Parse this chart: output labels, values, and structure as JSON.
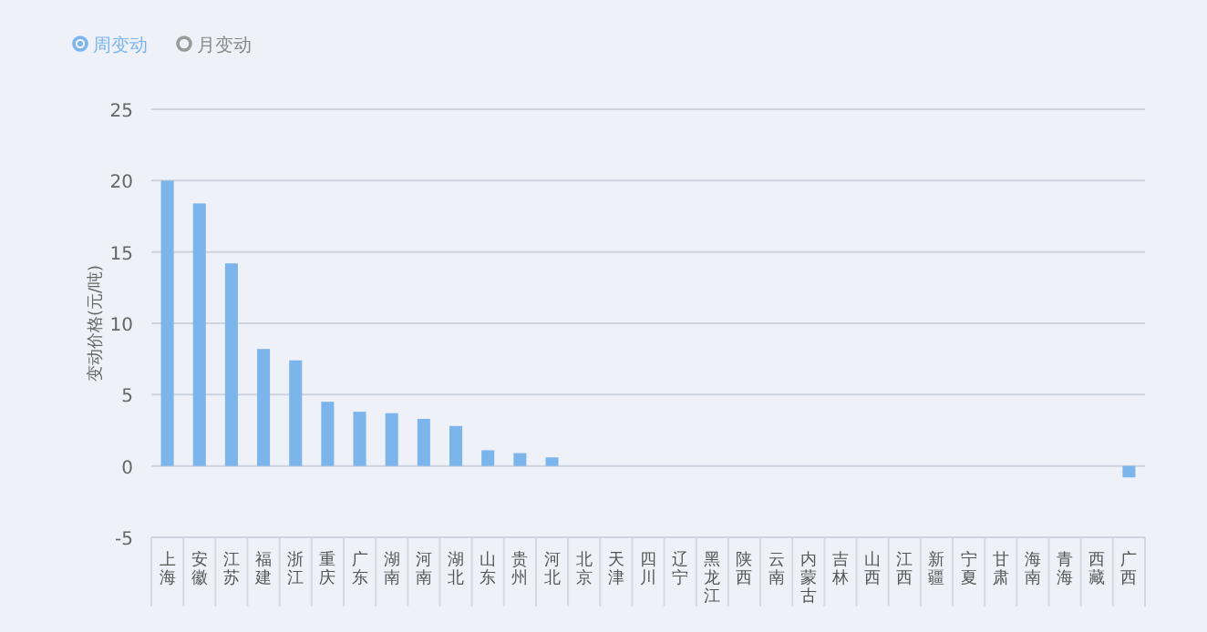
{
  "chart_data": {
    "type": "bar",
    "ylabel": "变动价格(元/吨)",
    "categories": [
      "上海",
      "安徽",
      "江苏",
      "福建",
      "浙江",
      "重庆",
      "广东",
      "湖南",
      "河南",
      "湖北",
      "山东",
      "贵州",
      "河北",
      "北京",
      "天津",
      "四川",
      "辽宁",
      "黑龙江",
      "陕西",
      "云南",
      "内蒙古",
      "吉林",
      "山西",
      "江西",
      "新疆",
      "宁夏",
      "甘肃",
      "海南",
      "青海",
      "西藏",
      "广西"
    ],
    "series": [
      {
        "name": "周变动",
        "color": "#7cb5ec",
        "values": [
          20,
          18.4,
          14.2,
          8.2,
          7.4,
          4.5,
          3.8,
          3.7,
          3.3,
          2.8,
          1.1,
          0.9,
          0.6,
          0,
          0,
          0,
          0,
          0,
          0,
          0,
          0,
          0,
          0,
          0,
          0,
          0,
          0,
          0,
          0,
          0,
          -0.8
        ]
      },
      {
        "name": "月变动",
        "color": "#999999",
        "values": [
          null,
          null,
          null,
          null,
          null,
          null,
          null,
          null,
          null,
          null,
          null,
          null,
          null,
          null,
          null,
          null,
          null,
          null,
          null,
          null,
          null,
          null,
          null,
          null,
          null,
          null,
          null,
          null,
          null,
          null,
          null
        ]
      }
    ],
    "ylim": [
      -5,
      25
    ],
    "yticks": [
      -5,
      0,
      5,
      10,
      15,
      20,
      25
    ],
    "grid": "y",
    "legend": "top left"
  }
}
